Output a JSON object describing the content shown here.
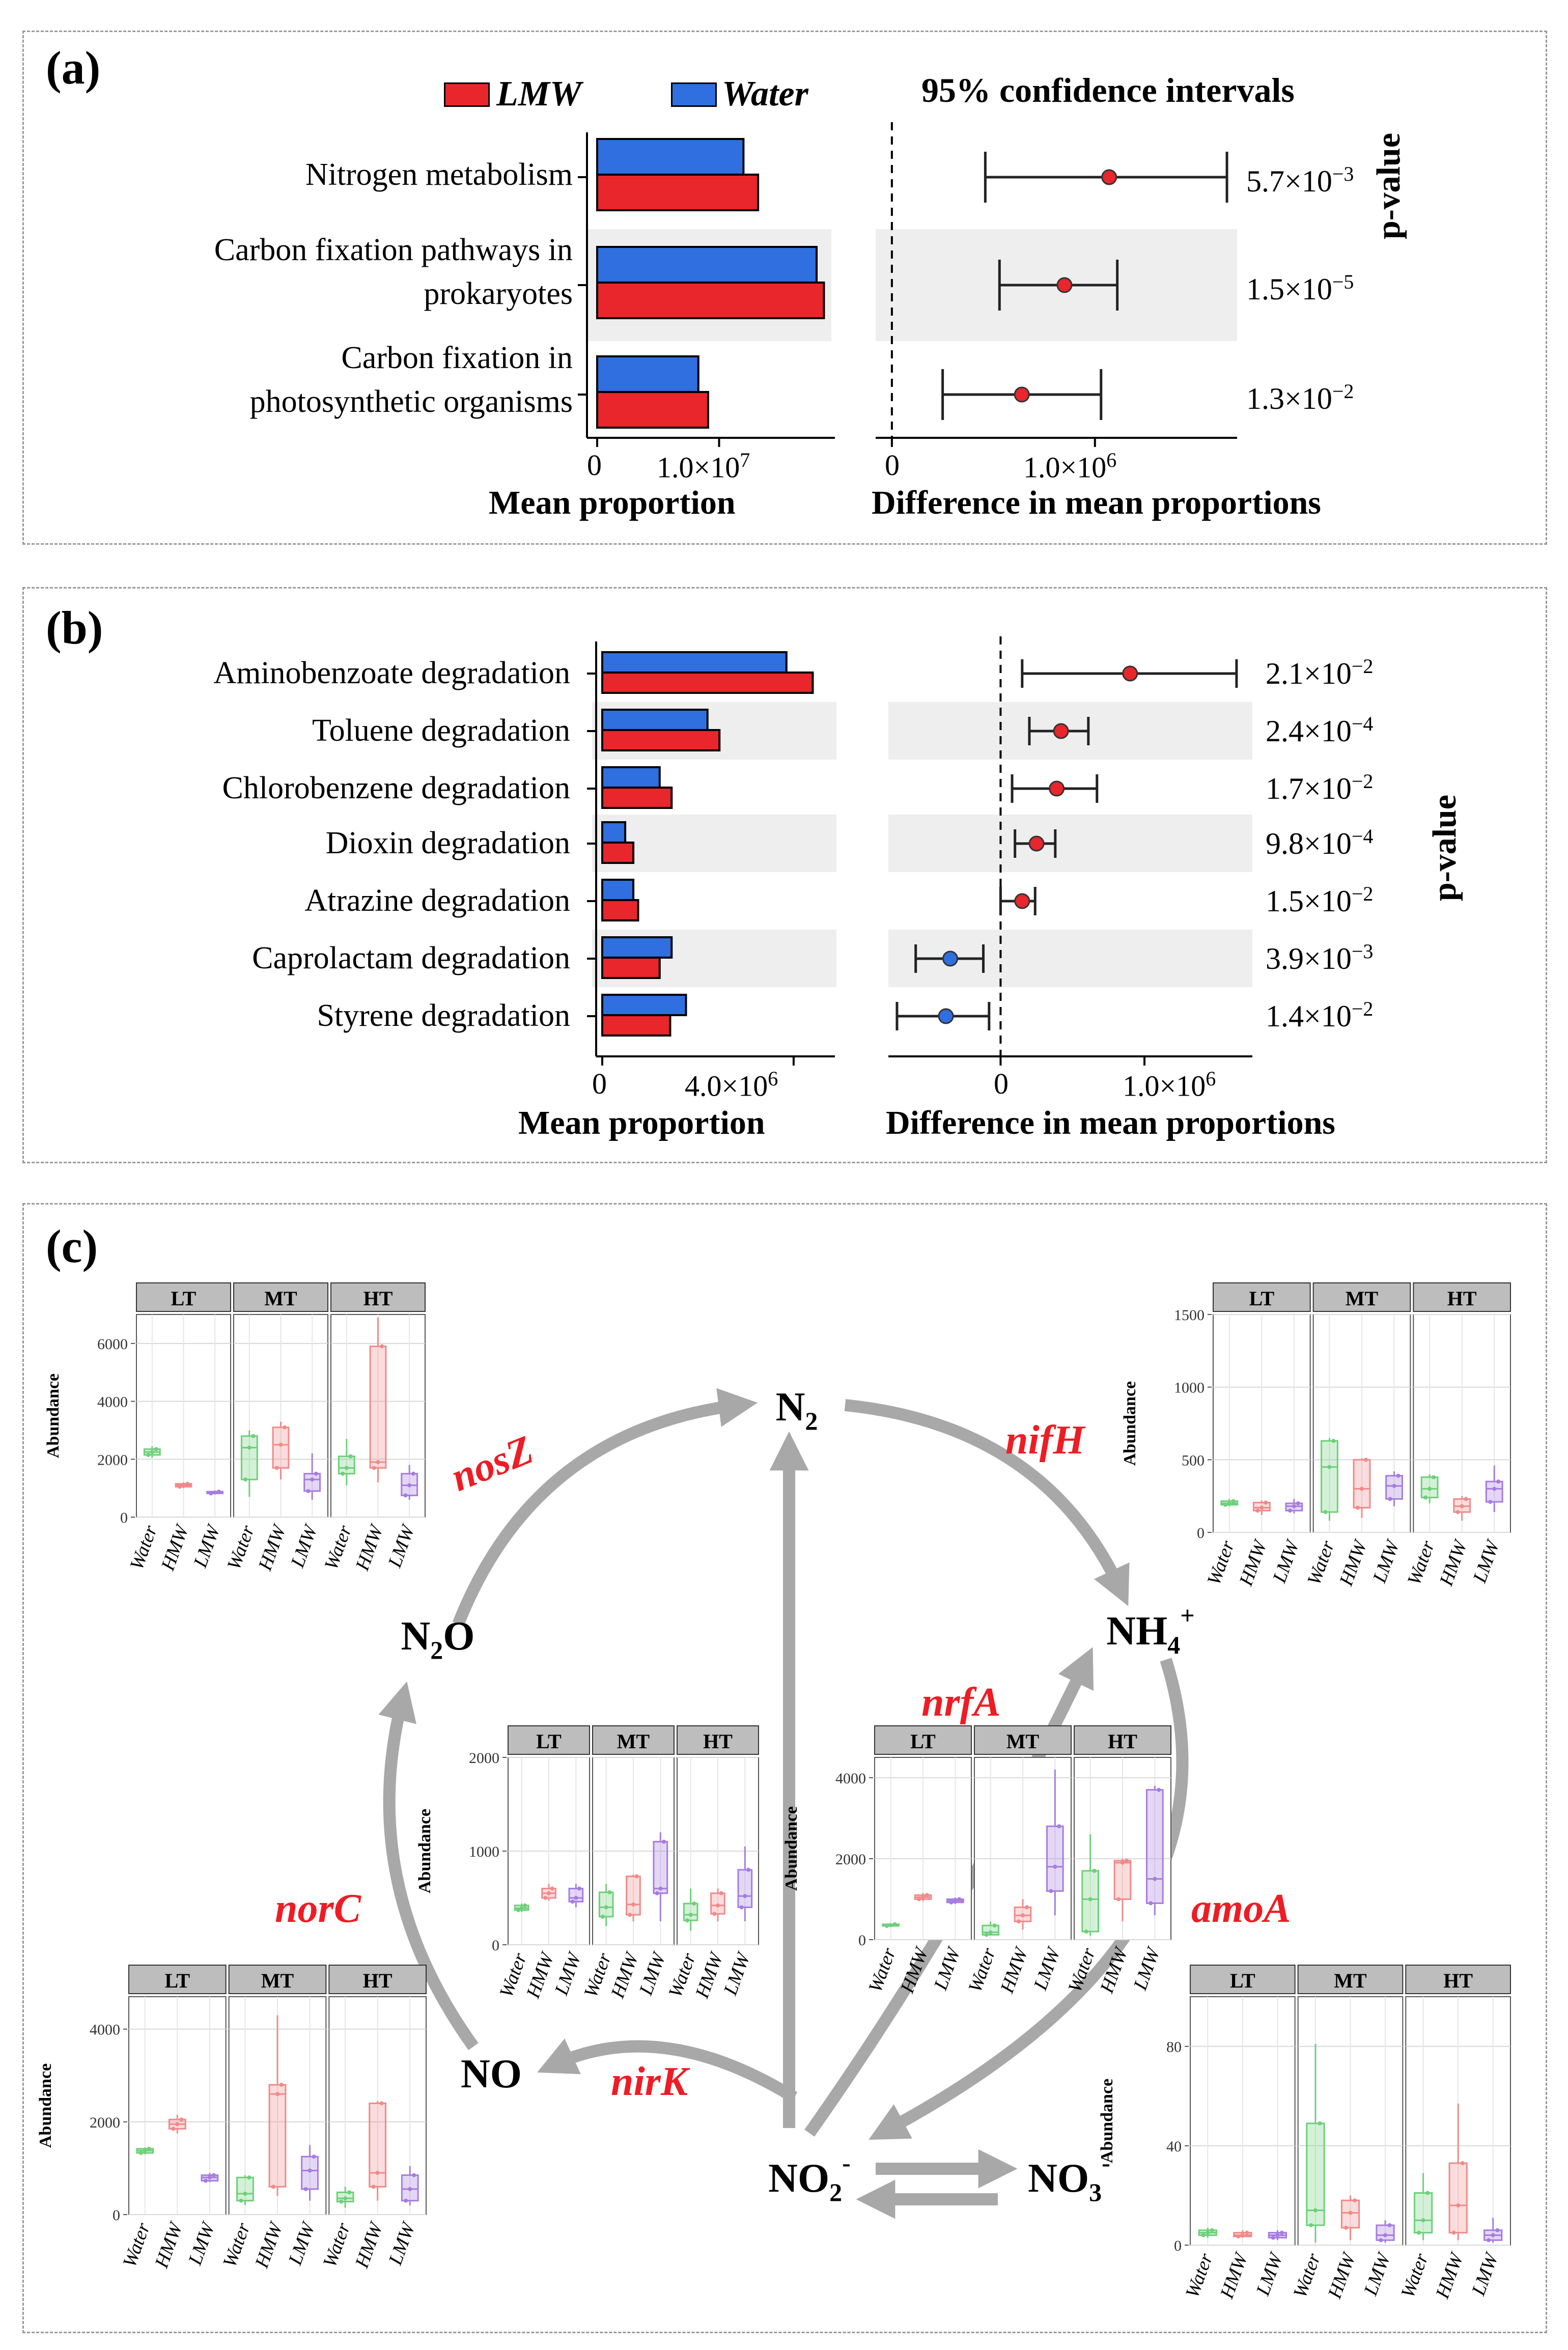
{
  "colors": {
    "lmw": "#e8262b",
    "water": "#2f6fe0",
    "green": "#6ed07a",
    "pink": "#f08a8a",
    "purple": "#a67ce0",
    "gray_arrow": "#a8a8a8",
    "strip": "#bdbdbd",
    "gene_red": "#ee1c24"
  },
  "panel_a": {
    "label": "(a)",
    "legend": {
      "lmw": "LMW",
      "water": "Water"
    },
    "ci_title": "95% confidence intervals",
    "pvalue_label": "p-value",
    "xlabel_left": "Mean proportion",
    "xlabel_right": "Difference in mean proportions",
    "ticks_left": [
      "0",
      "1.0×10",
      "7"
    ],
    "ticks_right": [
      "0",
      "1.0×10",
      "6"
    ]
  },
  "panel_b": {
    "label": "(b)",
    "pvalue_label": "p-value",
    "xlabel_left": "Mean proportion",
    "xlabel_right": "Difference in mean proportions",
    "ticks_left": [
      "0",
      "4.0×10",
      "6"
    ],
    "ticks_right": [
      "0",
      "1.0×10",
      "6"
    ]
  },
  "panel_c": {
    "label": "(c)",
    "nodes": {
      "n2": "N",
      "n2_sub": "2",
      "nh4": "NH",
      "nh4_sub": "4",
      "nh4_sup": "+",
      "n2o": "N",
      "n2o_sub": "2",
      "n2o_o": "O",
      "no": "NO",
      "no2": "NO",
      "no2_sub": "2",
      "no2_sup": "-",
      "no3": "NO",
      "no3_sub": "3",
      "no3_sup": "-"
    },
    "genes": {
      "nosZ": "nosZ",
      "nifH": "nifH",
      "nrfA": "nrfA",
      "norC": "norC",
      "amoA": "amoA",
      "nirK": "nirK"
    },
    "strips": [
      "LT",
      "MT",
      "HT"
    ],
    "groups": [
      "Water",
      "HMW",
      "LMW"
    ],
    "ylabel": "Abundance"
  },
  "chart_data": [
    {
      "type": "bar",
      "panel": "a",
      "categories": [
        "Nitrogen metabolism",
        "Carbon fixation pathways in prokaryotes",
        "Carbon fixation in photosynthetic organisms"
      ],
      "series": [
        {
          "name": "Water",
          "values": [
            12000000,
            18000000,
            8300000
          ]
        },
        {
          "name": "LMW",
          "values": [
            13200000,
            18600000,
            9100000
          ]
        }
      ],
      "xlim": [
        0,
        19500000
      ],
      "xlabel": "Mean proportion"
    },
    {
      "type": "scatter",
      "panel": "a",
      "title": "95% confidence intervals",
      "categories": [
        "Nitrogen metabolism",
        "Carbon fixation pathways in prokaryotes",
        "Carbon fixation in photosynthetic organisms"
      ],
      "estimate": [
        1070000,
        850000,
        640000
      ],
      "lower": [
        460000,
        530000,
        250000
      ],
      "upper": [
        1650000,
        1110000,
        1030000
      ],
      "pvalues": [
        "5.7×10",
        "1.5×10",
        "1.3×10"
      ],
      "pvalue_exp": [
        "−3",
        "−5",
        "−2"
      ],
      "xlim": [
        -80000,
        1700000
      ],
      "xlabel": "Difference in mean proportions"
    },
    {
      "type": "bar",
      "panel": "b",
      "categories": [
        "Aminobenzoate degradation",
        "Toluene degradation",
        "Chlorobenzene degradation",
        "Dioxin degradation",
        "Atrazine degradation",
        "Caprolactam degradation",
        "Styrene degradation"
      ],
      "series": [
        {
          "name": "Water",
          "values": [
            3850000,
            2200000,
            1200000,
            480000,
            650000,
            1450000,
            1750000
          ]
        },
        {
          "name": "LMW",
          "values": [
            4400000,
            2450000,
            1450000,
            650000,
            750000,
            1200000,
            1420000
          ]
        }
      ],
      "xlim": [
        0,
        4650000
      ],
      "xlabel": "Mean proportion"
    },
    {
      "type": "scatter",
      "panel": "b",
      "categories": [
        "Aminobenzoate degradation",
        "Toluene degradation",
        "Chlorobenzene degradation",
        "Dioxin degradation",
        "Atrazine degradation",
        "Caprolactam degradation",
        "Styrene degradation"
      ],
      "estimate": [
        900000,
        420000,
        390000,
        250000,
        150000,
        -350000,
        -380000
      ],
      "lower": [
        150000,
        200000,
        80000,
        100000,
        0,
        -590000,
        -720000
      ],
      "upper": [
        1640000,
        610000,
        670000,
        380000,
        240000,
        -120000,
        -80000
      ],
      "color": [
        "LMW",
        "LMW",
        "LMW",
        "LMW",
        "LMW",
        "Water",
        "Water"
      ],
      "pvalues": [
        "2.1×10",
        "2.4×10",
        "1.7×10",
        "9.8×10",
        "1.5×10",
        "3.9×10",
        "1.4×10"
      ],
      "pvalue_exp": [
        "−2",
        "−4",
        "−2",
        "−4",
        "−2",
        "−3",
        "−2"
      ],
      "xlim": [
        -780000,
        1750000
      ],
      "xlabel": "Difference in mean proportions"
    },
    {
      "type": "box",
      "panel": "c",
      "gene": "nosZ",
      "ylabel": "Abundance",
      "ylim": [
        0,
        7000
      ],
      "yticks": [
        0,
        2000,
        4000,
        6000
      ],
      "facets": [
        "LT",
        "MT",
        "HT"
      ],
      "groups": [
        "Water",
        "HMW",
        "LMW"
      ],
      "boxes": [
        [
          [
            2050,
            2150,
            2250,
            2350,
            2450
          ],
          [
            1000,
            1050,
            1100,
            1150,
            1200
          ],
          [
            800,
            820,
            850,
            880,
            900
          ]
        ],
        [
          [
            700,
            1300,
            2400,
            2800,
            3000
          ],
          [
            1300,
            1700,
            2500,
            3100,
            3300
          ],
          [
            600,
            900,
            1300,
            1500,
            2200
          ]
        ],
        [
          [
            1100,
            1500,
            1700,
            2100,
            2700
          ],
          [
            1200,
            1700,
            1900,
            5900,
            6900
          ],
          [
            600,
            750,
            1100,
            1500,
            1800
          ]
        ]
      ]
    },
    {
      "type": "box",
      "panel": "c",
      "gene": "nifH",
      "ylabel": "Abundance",
      "ylim": [
        0,
        1500
      ],
      "yticks": [
        0,
        500,
        1000,
        1500
      ],
      "facets": [
        "LT",
        "MT",
        "HT"
      ],
      "groups": [
        "Water",
        "HMW",
        "LMW"
      ],
      "boxes": [
        [
          [
            180,
            190,
            200,
            215,
            230
          ],
          [
            120,
            150,
            170,
            205,
            220
          ],
          [
            130,
            150,
            180,
            200,
            230
          ]
        ],
        [
          [
            80,
            140,
            450,
            630,
            650
          ],
          [
            100,
            170,
            300,
            500,
            510
          ],
          [
            180,
            230,
            320,
            390,
            420
          ]
        ],
        [
          [
            200,
            240,
            300,
            380,
            400
          ],
          [
            80,
            140,
            180,
            230,
            250
          ],
          [
            140,
            210,
            300,
            350,
            460
          ]
        ]
      ]
    },
    {
      "type": "box",
      "panel": "c",
      "gene": "norC",
      "ylabel": "Abundance",
      "ylim": [
        0,
        2000
      ],
      "yticks": [
        0,
        1000,
        2000
      ],
      "facets": [
        "LT",
        "MT",
        "HT"
      ],
      "groups": [
        "Water",
        "HMW",
        "LMW"
      ],
      "boxes": [
        [
          [
            350,
            370,
            390,
            420,
            440
          ],
          [
            470,
            500,
            550,
            600,
            650
          ],
          [
            400,
            460,
            500,
            600,
            650
          ]
        ],
        [
          [
            200,
            300,
            400,
            560,
            650
          ],
          [
            250,
            320,
            430,
            730,
            750
          ],
          [
            250,
            550,
            600,
            1100,
            1200
          ]
        ],
        [
          [
            150,
            260,
            320,
            440,
            600
          ],
          [
            250,
            330,
            420,
            550,
            600
          ],
          [
            250,
            400,
            520,
            800,
            1050
          ]
        ]
      ]
    },
    {
      "type": "box",
      "panel": "c",
      "gene": "nrfA",
      "ylabel": "Abundance",
      "ylim": [
        0,
        4500
      ],
      "yticks": [
        0,
        2000,
        4000
      ],
      "facets": [
        "LT",
        "MT",
        "HT"
      ],
      "groups": [
        "Water",
        "HMW",
        "LMW"
      ],
      "boxes": [
        [
          [
            320,
            340,
            360,
            380,
            400
          ],
          [
            950,
            1000,
            1050,
            1100,
            1150
          ],
          [
            880,
            920,
            960,
            1000,
            1040
          ]
        ],
        [
          [
            100,
            120,
            180,
            350,
            450
          ],
          [
            250,
            450,
            600,
            800,
            1000
          ],
          [
            600,
            1200,
            1800,
            2800,
            4200
          ]
        ],
        [
          [
            100,
            200,
            1000,
            1700,
            2600
          ],
          [
            450,
            1000,
            1900,
            1950,
            2000
          ],
          [
            600,
            900,
            1500,
            3700,
            3800
          ]
        ]
      ]
    },
    {
      "type": "box",
      "panel": "c",
      "gene": "nirK",
      "ylabel": "Abundance",
      "ylim": [
        0,
        4700
      ],
      "yticks": [
        0,
        2000,
        4000
      ],
      "facets": [
        "LT",
        "MT",
        "HT"
      ],
      "groups": [
        "Water",
        "HMW",
        "LMW"
      ],
      "boxes": [
        [
          [
            1300,
            1330,
            1380,
            1420,
            1450
          ],
          [
            1750,
            1850,
            1950,
            2050,
            2150
          ],
          [
            700,
            730,
            800,
            850,
            900
          ]
        ],
        [
          [
            200,
            300,
            450,
            800,
            850
          ],
          [
            400,
            600,
            2600,
            2800,
            4300
          ],
          [
            300,
            550,
            950,
            1250,
            1500
          ]
        ],
        [
          [
            150,
            280,
            350,
            480,
            600
          ],
          [
            300,
            600,
            900,
            2400,
            2450
          ],
          [
            200,
            300,
            550,
            850,
            1050
          ]
        ]
      ]
    },
    {
      "type": "box",
      "panel": "c",
      "gene": "amoA",
      "ylabel": "Abundance",
      "ylim": [
        0,
        100
      ],
      "yticks": [
        0,
        40,
        80
      ],
      "facets": [
        "LT",
        "MT",
        "HT"
      ],
      "groups": [
        "Water",
        "HMW",
        "LMW"
      ],
      "boxes": [
        [
          [
            3,
            4,
            5,
            6,
            7
          ],
          [
            3,
            3.5,
            4,
            5,
            6
          ],
          [
            2,
            3,
            4,
            5,
            6
          ]
        ],
        [
          [
            1,
            8,
            14,
            49,
            81
          ],
          [
            2,
            7,
            13,
            18,
            20
          ],
          [
            1,
            2,
            4,
            8,
            10
          ]
        ],
        [
          [
            2,
            5,
            10,
            21,
            29
          ],
          [
            2,
            5,
            16,
            33,
            57
          ],
          [
            1,
            2,
            4,
            6,
            11
          ]
        ]
      ]
    }
  ]
}
